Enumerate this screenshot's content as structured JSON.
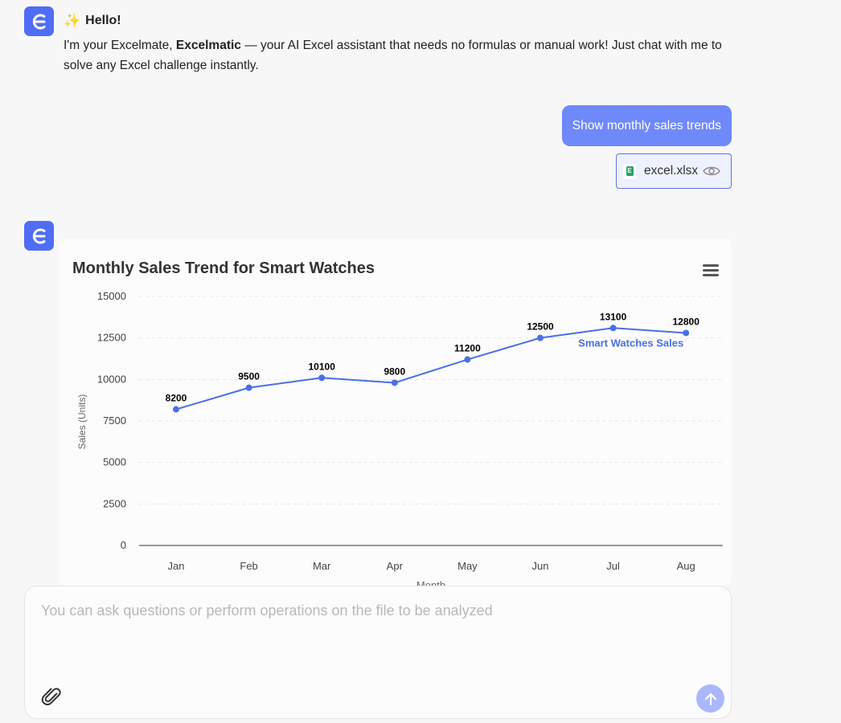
{
  "assistant": {
    "greeting_title": "Hello!",
    "intro_prefix": "I'm your Excelmate, ",
    "intro_name": "Excelmate",
    "intro_brand": "Excelmatic",
    "intro_suffix": " — your AI Excel assistant that needs no formulas or manual work! Just chat with me to solve any Excel challenge instantly."
  },
  "user_message": {
    "text": "Show monthly sales trends",
    "attachment_name": "excel.xlsx"
  },
  "chart_data": {
    "type": "line",
    "title": "Monthly Sales Trend for Smart Watches",
    "xlabel": "Month",
    "ylabel": "Sales (Units)",
    "categories": [
      "Jan",
      "Feb",
      "Mar",
      "Apr",
      "May",
      "Jun",
      "Jul",
      "Aug"
    ],
    "series": [
      {
        "name": "Smart Watches Sales",
        "values": [
          8200,
          9500,
          10100,
          9800,
          11200,
          12500,
          13100,
          12800
        ]
      }
    ],
    "ylim": [
      0,
      15000
    ],
    "yticks": [
      0,
      2500,
      5000,
      7500,
      10000,
      12500,
      15000
    ],
    "grid": true,
    "data_labels": true,
    "series_label_placement": "near-end",
    "colors": {
      "line": "#4a6fe3",
      "label": "#000000",
      "series_label": "#4a6fe3"
    }
  },
  "composer": {
    "placeholder": "You can ask questions or perform operations on the file to be analyzed",
    "value": ""
  },
  "colors": {
    "accent": "#4f6df5",
    "user_bubble": "#6f89fb",
    "send_button": "#a9b8fb"
  },
  "icons": {
    "avatar": "excelmatic-logo-icon",
    "greeting": "sparkle-icon",
    "file": "excel-file-icon",
    "preview": "eye-icon",
    "chart_menu": "hamburger-menu-icon",
    "attach": "paperclip-icon",
    "send": "arrow-up-icon"
  }
}
